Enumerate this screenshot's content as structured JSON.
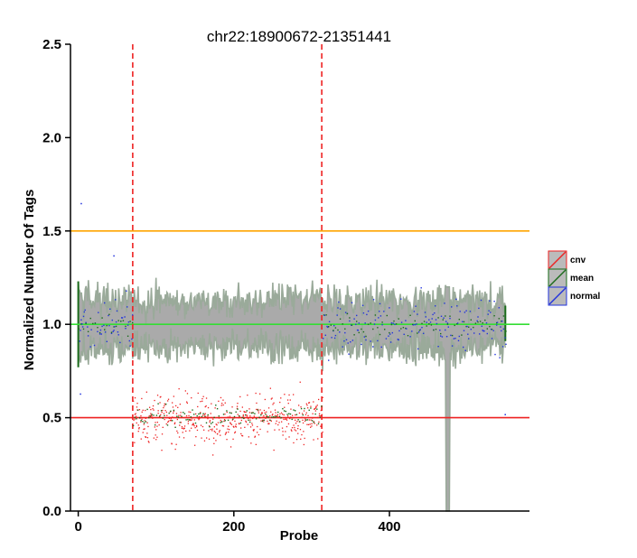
{
  "chart_data": {
    "type": "scatter",
    "title": "chr22:18900672-21351441",
    "xlabel": "Probe",
    "ylabel": "Normalized Number Of Tags",
    "xlim": [
      -10,
      580
    ],
    "ylim": [
      0,
      2.5
    ],
    "x_ticks": [
      "0",
      "200",
      "400"
    ],
    "x_tick_values": [
      0,
      200,
      400
    ],
    "y_ticks": [
      "0.0",
      "0.5",
      "1.0",
      "1.5",
      "2.0",
      "2.5"
    ],
    "y_tick_values": [
      0,
      0.5,
      1.0,
      1.5,
      2.0,
      2.5
    ],
    "grid": false,
    "legend_position": "right",
    "reference_lines": [
      {
        "y": 1.5,
        "color": "#ffa500"
      },
      {
        "y": 1.0,
        "color": "#33dd33"
      },
      {
        "y": 0.5,
        "color": "#ee2222"
      }
    ],
    "cnv_region": {
      "start": 70,
      "end": 313,
      "color": "#ee2222"
    },
    "n_probes": 550,
    "series": [
      {
        "name": "cnv",
        "color": "#ee2222"
      },
      {
        "name": "mean",
        "color": "#1a6b1a"
      },
      {
        "name": "normal",
        "color": "#2233dd"
      }
    ],
    "band": {
      "fill": "#aaaaaa",
      "edge": "#9aaa9a",
      "typical_half_width": 0.12
    },
    "dip": {
      "x": [
        470,
        480
      ],
      "min_y": 0
    }
  },
  "colors": {
    "background": "#ffffff",
    "axis": "#000000"
  }
}
